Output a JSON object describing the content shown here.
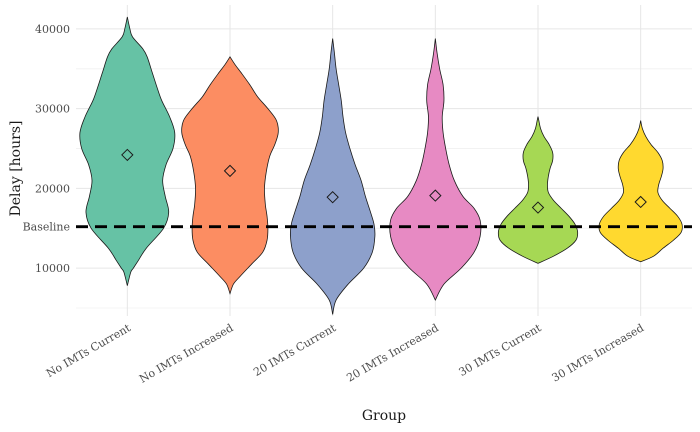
{
  "chart_data": {
    "type": "violin",
    "title": "",
    "xlabel": "Group",
    "ylabel": "Delay [hours]",
    "ylim": [
      4000,
      43000
    ],
    "yticks": [
      10000,
      20000,
      30000,
      40000
    ],
    "grid": true,
    "legend": "none",
    "baseline": {
      "label": "Baseline",
      "value": 15200
    },
    "categories": [
      "No IMTs Current",
      "No IMTs Increased",
      "20 IMTs Current",
      "20 IMTs Increased",
      "30 IMTs Current",
      "30 IMTs Increased"
    ],
    "means": [
      24200,
      22200,
      18900,
      19100,
      17600,
      18300
    ],
    "colors": [
      "#66c2a5",
      "#fc8d62",
      "#8da0cb",
      "#e78ac3",
      "#a6d854",
      "#ffd92f"
    ],
    "densities": [
      {
        "y": [
          7800,
          9500,
          10000,
          11000,
          12500,
          15000,
          17000,
          19000,
          21000,
          23000,
          25000,
          27000,
          29000,
          31000,
          32500,
          34500,
          36500,
          37500,
          39000,
          40000,
          41500
        ],
        "width": [
          0,
          0.04,
          0.07,
          0.13,
          0.22,
          0.42,
          0.48,
          0.44,
          0.41,
          0.45,
          0.53,
          0.55,
          0.49,
          0.4,
          0.35,
          0.29,
          0.23,
          0.18,
          0.06,
          0.03,
          0
        ]
      },
      {
        "y": [
          6800,
          8000,
          9000,
          10500,
          12000,
          13500,
          15000,
          16500,
          18000,
          20000,
          22000,
          24000,
          25500,
          27000,
          28500,
          30000,
          31500,
          33000,
          34500,
          35500,
          36500
        ],
        "width": [
          0,
          0.04,
          0.12,
          0.25,
          0.38,
          0.43,
          0.44,
          0.43,
          0.41,
          0.4,
          0.42,
          0.46,
          0.52,
          0.56,
          0.54,
          0.44,
          0.32,
          0.23,
          0.13,
          0.06,
          0
        ]
      },
      {
        "y": [
          4200,
          6000,
          8000,
          10000,
          12000,
          14000,
          15500,
          17000,
          19000,
          21000,
          23000,
          25000,
          27000,
          29000,
          31000,
          33000,
          35000,
          37000,
          38800
        ],
        "width": [
          0,
          0.04,
          0.18,
          0.36,
          0.46,
          0.49,
          0.48,
          0.44,
          0.38,
          0.33,
          0.26,
          0.2,
          0.15,
          0.12,
          0.1,
          0.07,
          0.04,
          0.02,
          0
        ]
      },
      {
        "y": [
          6000,
          8000,
          10000,
          12000,
          14000,
          16000,
          17500,
          19000,
          21000,
          23000,
          25000,
          27000,
          29000,
          31000,
          33000,
          35000,
          37000,
          38800
        ],
        "width": [
          0,
          0.1,
          0.3,
          0.45,
          0.52,
          0.52,
          0.45,
          0.32,
          0.22,
          0.16,
          0.12,
          0.09,
          0.08,
          0.1,
          0.09,
          0.05,
          0.02,
          0
        ]
      },
      {
        "y": [
          10600,
          11500,
          12500,
          13500,
          14500,
          15500,
          16500,
          17500,
          18500,
          19500,
          20500,
          21500,
          22500,
          23500,
          24500,
          25500,
          26500,
          27500,
          28500,
          29000
        ],
        "width": [
          0,
          0.18,
          0.34,
          0.44,
          0.46,
          0.43,
          0.36,
          0.27,
          0.18,
          0.12,
          0.11,
          0.12,
          0.14,
          0.17,
          0.17,
          0.13,
          0.07,
          0.03,
          0.01,
          0
        ]
      },
      {
        "y": [
          10800,
          11500,
          12500,
          13500,
          14500,
          15500,
          16500,
          17500,
          18500,
          19500,
          20500,
          21500,
          22500,
          23500,
          24500,
          25500,
          26500,
          27500,
          28500
        ],
        "width": [
          0,
          0.15,
          0.26,
          0.38,
          0.47,
          0.48,
          0.43,
          0.34,
          0.25,
          0.2,
          0.21,
          0.24,
          0.26,
          0.25,
          0.2,
          0.12,
          0.06,
          0.02,
          0
        ]
      }
    ]
  }
}
